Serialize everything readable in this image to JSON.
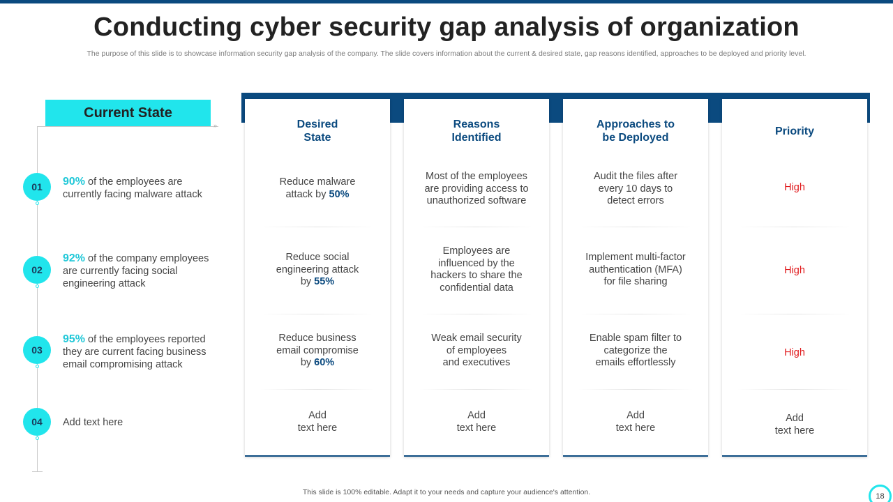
{
  "title": "Conducting cyber security gap analysis of organization",
  "subtitle": "The purpose of this slide is to showcase information security gap analysis of the company. The slide covers information about the current & desired state, gap reasons identified, approaches to be deployed and priority level.",
  "current_state": {
    "label": "Current State",
    "items": [
      {
        "num": "01",
        "pct": "90%",
        "text": " of the employees are currently facing malware attack"
      },
      {
        "num": "02",
        "pct": "92%",
        "text": " of the company employees are currently facing social engineering attack"
      },
      {
        "num": "03",
        "pct": "95%",
        "text": " of the employees reported they are current facing business email compromising attack"
      },
      {
        "num": "04",
        "text": "Add text here"
      }
    ]
  },
  "columns": {
    "desired": {
      "header_line1": "Desired",
      "header_line2": "State",
      "rows": [
        {
          "l1": "Reduce malware",
          "l2": "attack by ",
          "hl": "50%"
        },
        {
          "l1": "Reduce social",
          "l2": "engineering attack",
          "l3": "by  ",
          "hl": "55%"
        },
        {
          "l1": "Reduce business",
          "l2": "email compromise",
          "l3": "by ",
          "hl": "60%"
        },
        {
          "l1": "Add",
          "l2": "text here"
        }
      ]
    },
    "reasons": {
      "header_line1": "Reasons",
      "header_line2": "Identified",
      "rows": [
        {
          "l1": "Most of the employees",
          "l2": "are providing access to",
          "l3": "unauthorized software"
        },
        {
          "l1": "Employees are",
          "l2": "influenced by the",
          "l3": "hackers to share the",
          "l4": "confidential data"
        },
        {
          "l1": "Weak email security",
          "l2": "of employees",
          "l3": "and executives"
        },
        {
          "l1": "Add",
          "l2": "text here"
        }
      ]
    },
    "approaches": {
      "header_line1": "Approaches to",
      "header_line2": "be Deployed",
      "rows": [
        {
          "l1": "Audit the files after",
          "l2": "every 10 days to",
          "l3": "detect errors"
        },
        {
          "l1": "Implement multi-factor",
          "l2": "authentication (MFA)",
          "l3": "for file sharing"
        },
        {
          "l1": "Enable spam filter to",
          "l2": "categorize the",
          "l3": "emails effortlessly"
        },
        {
          "l1": "Add",
          "l2": "text here"
        }
      ]
    },
    "priority": {
      "header": "Priority",
      "rows": [
        {
          "value": "High"
        },
        {
          "value": "High"
        },
        {
          "value": "High"
        },
        {
          "l1": "Add",
          "l2": "text here"
        }
      ]
    }
  },
  "footer": "This slide is 100% editable.  Adapt it to your needs and capture your audience's attention.",
  "page_number": "18",
  "colors": {
    "accent": "#21e5ec",
    "navy": "#0b4a7f",
    "priority_high": "#e0181b"
  }
}
